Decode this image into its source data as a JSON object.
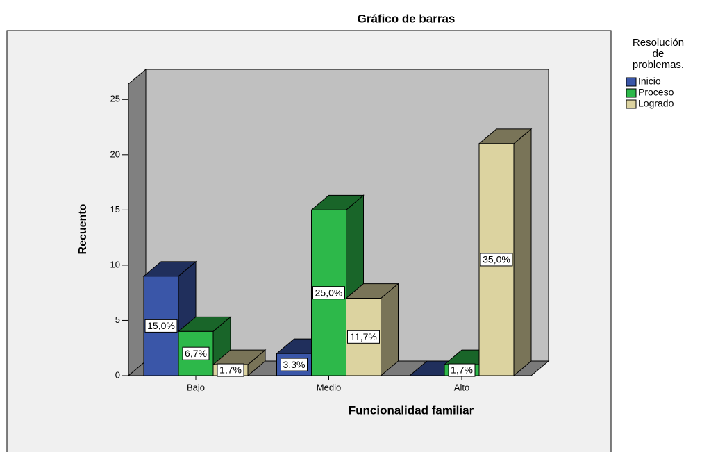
{
  "chart_data": {
    "type": "bar3d",
    "title": "Gráfico de barras",
    "x_label": "Funcionalidad familiar",
    "y_label": "Recuento",
    "legend_title_lines": [
      "Resolución",
      "de",
      "problemas."
    ],
    "categories": [
      "Bajo",
      "Medio",
      "Alto"
    ],
    "series": [
      {
        "name": "Inicio",
        "color": "#3a56a8",
        "values": [
          9,
          2,
          0
        ],
        "data_labels": [
          "15,0%",
          "3,3%",
          null
        ]
      },
      {
        "name": "Proceso",
        "color": "#2db84a",
        "values": [
          4,
          15,
          1
        ],
        "data_labels": [
          "6,7%",
          "25,0%",
          "1,7%"
        ]
      },
      {
        "name": "Logrado",
        "color": "#dcd3a0",
        "values": [
          1,
          7,
          21
        ],
        "data_labels": [
          "1,7%",
          "11,7%",
          "35,0%"
        ]
      }
    ],
    "ylim": [
      0,
      26.4
    ],
    "yticks": [
      0,
      5,
      10,
      15,
      20,
      25
    ]
  }
}
